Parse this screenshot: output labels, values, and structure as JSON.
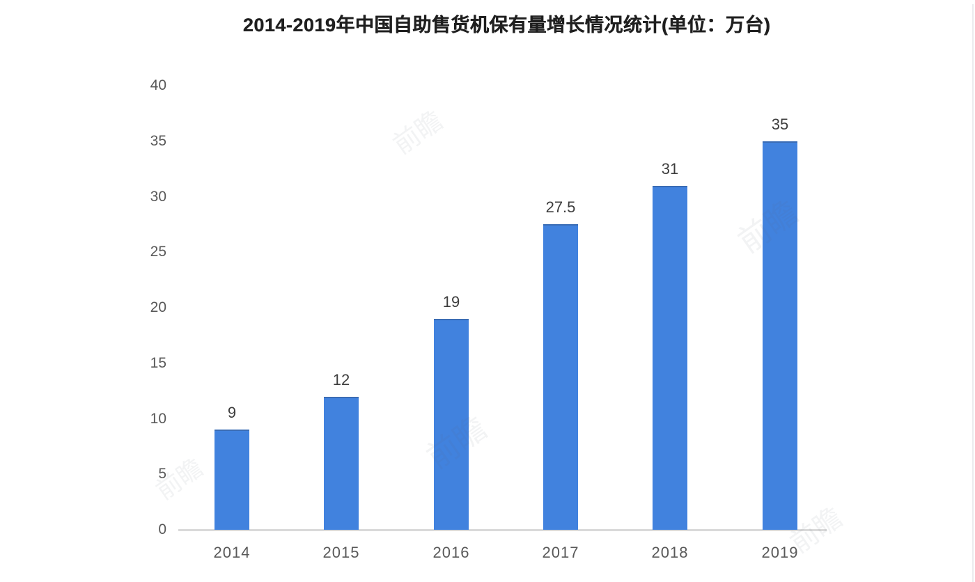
{
  "page": {
    "background": "#ffffff"
  },
  "chart_data": {
    "type": "bar",
    "title": "2014-2019年中国自助售货机保有量增长情况统计(单位：万台)",
    "categories": [
      "2014",
      "2015",
      "2016",
      "2017",
      "2018",
      "2019"
    ],
    "values": [
      9,
      12,
      19,
      27.5,
      31,
      35
    ],
    "data_labels": [
      "9",
      "12",
      "19",
      "27.5",
      "31",
      "35"
    ],
    "xlabel": "",
    "ylabel": "",
    "unit": "万台",
    "ylim": [
      0,
      40
    ],
    "yticks": [
      0,
      5,
      10,
      15,
      20,
      25,
      30,
      35,
      40
    ],
    "grid": false,
    "legend": "none",
    "colors": {
      "bar": "#4182de",
      "bar_edge": "#3a6cb4",
      "axis_line": "#d9d9d9",
      "title_text": "#1f1f1f",
      "value_label": "#3d3d3d",
      "tick_label": "#595959"
    }
  },
  "watermark": {
    "text": "前瞻"
  }
}
